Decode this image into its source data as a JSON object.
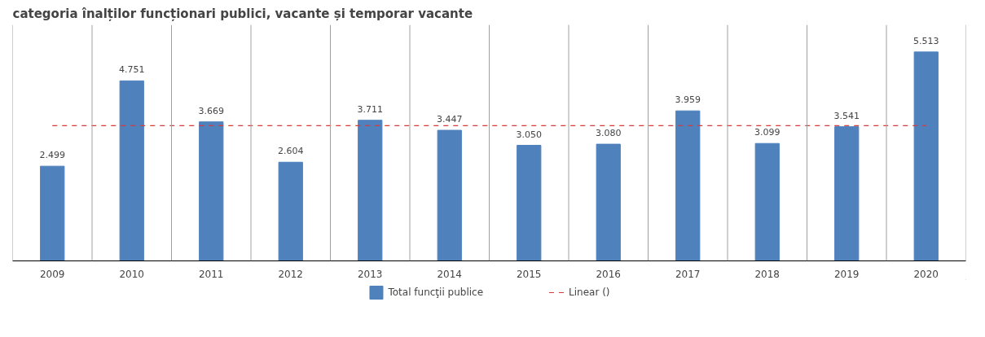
{
  "chart_data": {
    "type": "bar",
    "title": "categoria înalților funcționari publici, vacante și temporar vacante",
    "categories": [
      "2009",
      "2010",
      "2011",
      "2012",
      "2013",
      "2014",
      "2015",
      "2016",
      "2017",
      "2018",
      "2019",
      "2020"
    ],
    "series": [
      {
        "name": "Total funcţii publice",
        "color": "#4f81bd",
        "values": [
          2499,
          4751,
          3669,
          2604,
          3711,
          3447,
          3050,
          3080,
          3959,
          3099,
          3541,
          5513
        ],
        "value_labels": [
          "2.499",
          "4.751",
          "3.669",
          "2.604",
          "3.711",
          "3.447",
          "3.050",
          "3.080",
          "3.959",
          "3.099",
          "3.541",
          "5.513"
        ]
      },
      {
        "name": "Linear ()",
        "type": "line",
        "color": "#d9393b",
        "line_style": "dashed",
        "values": [
          3570,
          3570,
          3570,
          3570,
          3570,
          3570,
          3570,
          3570,
          3570,
          3570,
          3570,
          3570
        ]
      }
    ],
    "tick_labels": "x",
    "grid": "x",
    "legend": "bottom"
  }
}
